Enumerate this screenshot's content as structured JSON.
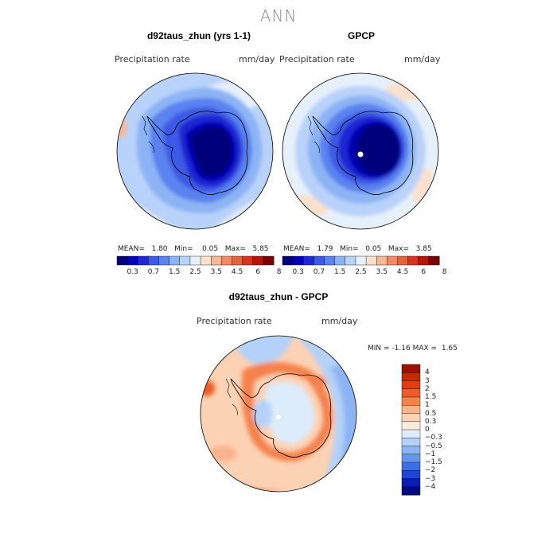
{
  "main_title": "ANN",
  "panels": {
    "model": {
      "title": "d92taus_zhun (yrs 1-1)",
      "variable": "Precipitation rate",
      "units": "mm/day",
      "stats": {
        "mean_label": "MEAN=",
        "mean": "1.80",
        "min_label": "Min=",
        "min": "0.05",
        "max_label": "Max=",
        "max": "5.85"
      }
    },
    "obs": {
      "title": "GPCP",
      "variable": "Precipitation rate",
      "units": "mm/day",
      "stats": {
        "mean_label": "MEAN=",
        "mean": "1.79",
        "min_label": "Min=",
        "min": "0.05",
        "max_label": "Max=",
        "max": "3.85"
      }
    },
    "diff": {
      "title": "d92taus_zhun - GPCP",
      "variable": "Precipitation rate",
      "units": "mm/day",
      "stats": {
        "min_label": "MIN =",
        "min": "-1.16",
        "max_label": "MAX =",
        "max": "1.65"
      }
    }
  },
  "colorbars": {
    "abs": {
      "colors": [
        "#00007a",
        "#0000b4",
        "#1e28d2",
        "#3c5ae6",
        "#5a82f0",
        "#8cb4f5",
        "#b9d2fa",
        "#e6f0fa",
        "#fae1cd",
        "#f5b996",
        "#f08c64",
        "#e6643c",
        "#d2371e",
        "#b4140a",
        "#780000"
      ],
      "labels": [
        "0.3",
        "0.7",
        "1.5",
        "2.5",
        "3.5",
        "4.5",
        "6",
        "8"
      ]
    },
    "diff": {
      "colors": [
        "#a01000",
        "#c82800",
        "#e63c0a",
        "#f05a28",
        "#f5824b",
        "#fab48c",
        "#fcd2b4",
        "#fdebdc",
        "#dcecfa",
        "#b4d2f8",
        "#8cb4f5",
        "#6496f0",
        "#3c6ee6",
        "#1e46d2",
        "#0a1eb4",
        "#000a82"
      ],
      "labels": [
        "4",
        "3",
        "2",
        "1.5",
        "1",
        "0.5",
        "0.3",
        "0",
        "−0.3",
        "−0.5",
        "−1",
        "−1.5",
        "−2",
        "−3",
        "−4"
      ]
    }
  }
}
